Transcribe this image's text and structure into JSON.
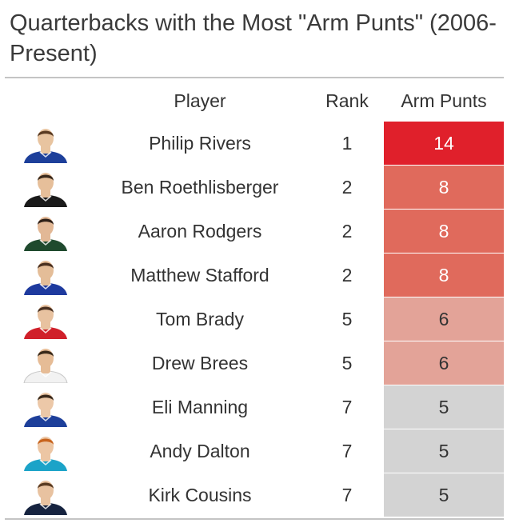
{
  "title": "Quarterbacks with the Most \"Arm Punts\" (2006-Present)",
  "columns": {
    "player": "Player",
    "rank": "Rank",
    "arm_punts": "Arm Punts"
  },
  "colors": {
    "high": "#e0202b",
    "mid": "#e06a5c",
    "low": "#e3a398",
    "base": "#d3d3d3"
  },
  "chart_data": {
    "type": "table",
    "title": "Quarterbacks with the Most \"Arm Punts\" (2006-Present)",
    "columns": [
      "Player",
      "Rank",
      "Arm Punts"
    ],
    "rows": [
      {
        "player": "Philip Rivers",
        "rank": 1,
        "arm_punts": 14,
        "jersey": "#1d3f9a",
        "skin": "#e8c4a0",
        "hair": "#5a3b22"
      },
      {
        "player": "Ben Roethlisberger",
        "rank": 2,
        "arm_punts": 8,
        "jersey": "#1a1a1a",
        "skin": "#e6bf9a",
        "hair": "#3b2a1c"
      },
      {
        "player": "Aaron Rodgers",
        "rank": 2,
        "arm_punts": 8,
        "jersey": "#1f4a2e",
        "skin": "#e2b896",
        "hair": "#2e2018"
      },
      {
        "player": "Matthew Stafford",
        "rank": 2,
        "arm_punts": 8,
        "jersey": "#1e3a9e",
        "skin": "#e4bd98",
        "hair": "#4a3020"
      },
      {
        "player": "Tom Brady",
        "rank": 5,
        "arm_punts": 6,
        "jersey": "#d0202a",
        "skin": "#e8c2a0",
        "hair": "#4a3020"
      },
      {
        "player": "Drew Brees",
        "rank": 5,
        "arm_punts": 6,
        "jersey": "#f2f2f2",
        "skin": "#e6bc96",
        "hair": "#3a2a1a"
      },
      {
        "player": "Eli Manning",
        "rank": 7,
        "arm_punts": 5,
        "jersey": "#1d3f9a",
        "skin": "#ecc8a8",
        "hair": "#3b2a1c"
      },
      {
        "player": "Andy Dalton",
        "rank": 7,
        "arm_punts": 5,
        "jersey": "#1ba3c8",
        "skin": "#ecc6a4",
        "hair": "#c8641e"
      },
      {
        "player": "Kirk Cousins",
        "rank": 7,
        "arm_punts": 5,
        "jersey": "#16233f",
        "skin": "#e8c2a0",
        "hair": "#5a3b22"
      }
    ]
  }
}
